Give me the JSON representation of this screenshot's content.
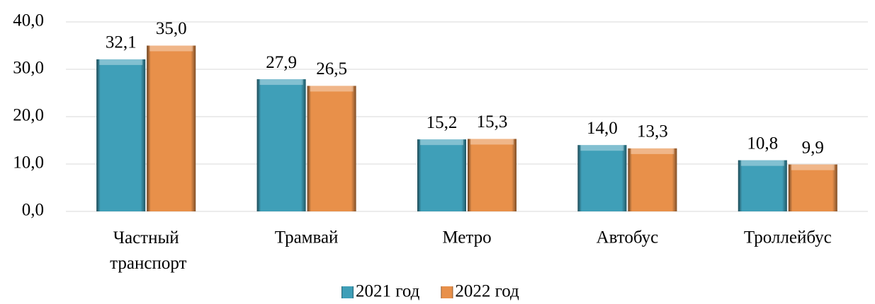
{
  "chart_data": {
    "type": "bar",
    "categories": [
      "Частный транспорт",
      "Трамвай",
      "Метро",
      "Автобус",
      "Троллейбус"
    ],
    "series": [
      {
        "name": "2021 год",
        "color": "#3f9fb8",
        "values": [
          32.1,
          27.9,
          15.2,
          14.0,
          10.8
        ],
        "value_labels": [
          "32,1",
          "27,9",
          "15,2",
          "14,0",
          "10,8"
        ]
      },
      {
        "name": "2022 год",
        "color": "#e8904a",
        "values": [
          35.0,
          26.5,
          15.3,
          13.3,
          9.9
        ],
        "value_labels": [
          "35,0",
          "26,5",
          "15,3",
          "13,3",
          "9,9"
        ]
      }
    ],
    "ylim": [
      0,
      40
    ],
    "yticks": [
      {
        "value": 0,
        "label": "0,0"
      },
      {
        "value": 10,
        "label": "10,0"
      },
      {
        "value": 20,
        "label": "20,0"
      },
      {
        "value": 30,
        "label": "30,0"
      },
      {
        "value": 40,
        "label": "40,0"
      }
    ],
    "grid": true,
    "legend": "bottom"
  }
}
